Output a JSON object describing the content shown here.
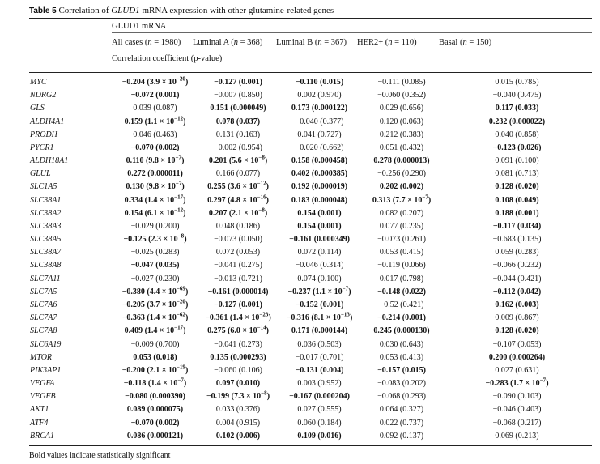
{
  "caption": {
    "label": "Table 5",
    "text_before": "Correlation of",
    "gene": "GLUD1",
    "text_after": "mRNA expression with other glutamine-related genes"
  },
  "header": {
    "group": "GLUD1 mRNA",
    "columns": [
      {
        "label": "All cases (",
        "n": "n",
        "eq": " = 1980)"
      },
      {
        "label": "Luminal A (",
        "n": "n",
        "eq": " = 368)"
      },
      {
        "label": "Luminal B (",
        "n": "n",
        "eq": " = 367)"
      },
      {
        "label": "HER2+ (",
        "n": "n",
        "eq": " = 110)"
      },
      {
        "label": "Basal (",
        "n": "n",
        "eq": " = 150)"
      }
    ],
    "subheader": "Correlation coefficient (p-value)"
  },
  "rows": [
    {
      "gene": "MYC",
      "cells": [
        {
          "t": "−0.204 (3.9 × 10^−20)",
          "b": true
        },
        {
          "t": "−0.127 (0.001)",
          "b": true
        },
        {
          "t": "−0.110 (0.015)",
          "b": true
        },
        {
          "t": "−0.111 (0.085)",
          "b": false
        },
        {
          "t": "0.015 (0.785)",
          "b": false
        }
      ]
    },
    {
      "gene": "NDRG2",
      "cells": [
        {
          "t": "−0.072 (0.001)",
          "b": true
        },
        {
          "t": "−0.007 (0.850)",
          "b": false
        },
        {
          "t": "0.002 (0.970)",
          "b": false
        },
        {
          "t": "−0.060 (0.352)",
          "b": false
        },
        {
          "t": "−0.040 (0.475)",
          "b": false
        }
      ]
    },
    {
      "gene": "GLS",
      "cells": [
        {
          "t": "0.039 (0.087)",
          "b": false
        },
        {
          "t": "0.151 (0.000049)",
          "b": true
        },
        {
          "t": "0.173 (0.000122)",
          "b": true
        },
        {
          "t": "0.029 (0.656)",
          "b": false
        },
        {
          "t": "0.117 (0.033)",
          "b": true
        }
      ]
    },
    {
      "gene": "ALDH4A1",
      "cells": [
        {
          "t": "0.159 (1.1 × 10^−12)",
          "b": true
        },
        {
          "t": "0.078 (0.037)",
          "b": true
        },
        {
          "t": "−0.040 (0.377)",
          "b": false
        },
        {
          "t": "0.120 (0.063)",
          "b": false
        },
        {
          "t": "0.232 (0.000022)",
          "b": true
        }
      ]
    },
    {
      "gene": "PRODH",
      "cells": [
        {
          "t": "0.046 (0.463)",
          "b": false
        },
        {
          "t": "0.131 (0.163)",
          "b": false
        },
        {
          "t": "0.041 (0.727)",
          "b": false
        },
        {
          "t": "0.212 (0.383)",
          "b": false
        },
        {
          "t": "0.040 (0.858)",
          "b": false
        }
      ]
    },
    {
      "gene": "PYCR1",
      "cells": [
        {
          "t": "−0.070 (0.002)",
          "b": true
        },
        {
          "t": "−0.002 (0.954)",
          "b": false
        },
        {
          "t": "−0.020 (0.662)",
          "b": false
        },
        {
          "t": "0.051 (0.432)",
          "b": false
        },
        {
          "t": "−0.123 (0.026)",
          "b": true
        }
      ]
    },
    {
      "gene": "ALDH18A1",
      "cells": [
        {
          "t": "0.110 (9.8 × 10^−7)",
          "b": true
        },
        {
          "t": "0.201 (5.6 × 10^−8)",
          "b": true
        },
        {
          "t": "0.158 (0.000458)",
          "b": true
        },
        {
          "t": "0.278 (0.000013)",
          "b": true
        },
        {
          "t": "0.091 (0.100)",
          "b": false
        }
      ]
    },
    {
      "gene": "GLUL",
      "cells": [
        {
          "t": "0.272 (0.000011)",
          "b": true
        },
        {
          "t": "0.166 (0.077)",
          "b": false
        },
        {
          "t": "0.402 (0.000385)",
          "b": true
        },
        {
          "t": "−0.256 (0.290)",
          "b": false
        },
        {
          "t": "0.081 (0.713)",
          "b": false
        }
      ]
    },
    {
      "gene": "SLC1A5",
      "cells": [
        {
          "t": "0.130 (9.8 × 10^−7)",
          "b": true
        },
        {
          "t": "0.255 (3.6 × 10^−12)",
          "b": true
        },
        {
          "t": "0.192 (0.000019)",
          "b": true
        },
        {
          "t": "0.202 (0.002)",
          "b": true
        },
        {
          "t": "0.128 (0.020)",
          "b": true
        }
      ]
    },
    {
      "gene": "SLC38A1",
      "cells": [
        {
          "t": "0.334 (1.4 × 10^−17)",
          "b": true
        },
        {
          "t": "0.297 (4.8 × 10^−16)",
          "b": true
        },
        {
          "t": "0.183 (0.000048)",
          "b": true
        },
        {
          "t": "0.313 (7.7 × 10^−7)",
          "b": true
        },
        {
          "t": "0.108 (0.049)",
          "b": true
        }
      ]
    },
    {
      "gene": "SLC38A2",
      "cells": [
        {
          "t": "0.154 (6.1 × 10^−12)",
          "b": true
        },
        {
          "t": "0.207 (2.1 × 10^−8)",
          "b": true
        },
        {
          "t": "0.154 (0.001)",
          "b": true
        },
        {
          "t": "0.082 (0.207)",
          "b": false
        },
        {
          "t": "0.188 (0.001)",
          "b": true
        }
      ]
    },
    {
      "gene": "SLC38A3",
      "cells": [
        {
          "t": "−0.029 (0.200)",
          "b": false
        },
        {
          "t": "0.048 (0.186)",
          "b": false
        },
        {
          "t": "0.154 (0.001)",
          "b": true
        },
        {
          "t": "0.077 (0.235)",
          "b": false
        },
        {
          "t": "−0.117 (0.034)",
          "b": true
        }
      ]
    },
    {
      "gene": "SLC38A5",
      "cells": [
        {
          "t": "−0.125 (2.3 × 10^−8)",
          "b": true
        },
        {
          "t": "−0.073 (0.050)",
          "b": false
        },
        {
          "t": "−0.161 (0.000349)",
          "b": true
        },
        {
          "t": "−0.073 (0.261)",
          "b": false
        },
        {
          "t": "−0.683 (0.135)",
          "b": false
        }
      ]
    },
    {
      "gene": "SLC38A7",
      "cells": [
        {
          "t": "−0.025 (0.283)",
          "b": false
        },
        {
          "t": "0.072 (0.053)",
          "b": false
        },
        {
          "t": "0.072 (0.114)",
          "b": false
        },
        {
          "t": "0.053 (0.415)",
          "b": false
        },
        {
          "t": "0.059 (0.283)",
          "b": false
        }
      ]
    },
    {
      "gene": "SLC38A8",
      "cells": [
        {
          "t": "−0.047 (0.035)",
          "b": true
        },
        {
          "t": "−0.041 (0.275)",
          "b": false
        },
        {
          "t": "−0.046 (0.314)",
          "b": false
        },
        {
          "t": "−0.119 (0.066)",
          "b": false
        },
        {
          "t": "−0.066 (0.232)",
          "b": false
        }
      ]
    },
    {
      "gene": "SLC7A11",
      "cells": [
        {
          "t": "−0.027 (0.230)",
          "b": false
        },
        {
          "t": "−0.013 (0.721)",
          "b": false
        },
        {
          "t": "0.074 (0.100)",
          "b": false
        },
        {
          "t": "0.017 (0.798)",
          "b": false
        },
        {
          "t": "−0.044 (0.421)",
          "b": false
        }
      ]
    },
    {
      "gene": "SLC7A5",
      "cells": [
        {
          "t": "−0.380 (4.4 × 10^−69)",
          "b": true
        },
        {
          "t": "−0.161 (0.000014)",
          "b": true
        },
        {
          "t": "−0.237 (1.1 × 10^−7)",
          "b": true
        },
        {
          "t": "−0.148 (0.022)",
          "b": true
        },
        {
          "t": "−0.112 (0.042)",
          "b": true
        }
      ]
    },
    {
      "gene": "SLC7A6",
      "cells": [
        {
          "t": "−0.205 (3.7 × 10^−20)",
          "b": true
        },
        {
          "t": "−0.127 (0.001)",
          "b": true
        },
        {
          "t": "−0.152 (0.001)",
          "b": true
        },
        {
          "t": "−0.52 (0.421)",
          "b": false
        },
        {
          "t": "0.162 (0.003)",
          "b": true
        }
      ]
    },
    {
      "gene": "SLC7A7",
      "cells": [
        {
          "t": "−0.363 (1.4 × 10^−62)",
          "b": true
        },
        {
          "t": "−0.361 (1.4 × 10^−23)",
          "b": true
        },
        {
          "t": "−0.316 (8.1 × 10^−13)",
          "b": true
        },
        {
          "t": "−0.214 (0.001)",
          "b": true
        },
        {
          "t": "0.009 (0.867)",
          "b": false
        }
      ]
    },
    {
      "gene": "SLC7A8",
      "cells": [
        {
          "t": "0.409 (1.4 × 10^−17)",
          "b": true
        },
        {
          "t": "0.275 (6.0 × 10^−14)",
          "b": true
        },
        {
          "t": "0.171 (0.000144)",
          "b": true
        },
        {
          "t": "0.245 (0.000130)",
          "b": true
        },
        {
          "t": "0.128 (0.020)",
          "b": true
        }
      ]
    },
    {
      "gene": "SLC6A19",
      "cells": [
        {
          "t": "−0.009 (0.700)",
          "b": false
        },
        {
          "t": "−0.041 (0.273)",
          "b": false
        },
        {
          "t": "0.036 (0.503)",
          "b": false
        },
        {
          "t": "0.030 (0.643)",
          "b": false
        },
        {
          "t": "−0.107 (0.053)",
          "b": false
        }
      ]
    },
    {
      "gene": "MTOR",
      "cells": [
        {
          "t": "0.053 (0.018)",
          "b": true
        },
        {
          "t": "0.135 (0.000293)",
          "b": true
        },
        {
          "t": "−0.017 (0.701)",
          "b": false
        },
        {
          "t": "0.053 (0.413)",
          "b": false
        },
        {
          "t": "0.200 (0.000264)",
          "b": true
        }
      ]
    },
    {
      "gene": "PIK3AP1",
      "cells": [
        {
          "t": "−0.200 (2.1 × 10^−19)",
          "b": true
        },
        {
          "t": "−0.060 (0.106)",
          "b": false
        },
        {
          "t": "−0.131 (0.004)",
          "b": true
        },
        {
          "t": "−0.157 (0.015)",
          "b": true
        },
        {
          "t": "0.027 (0.631)",
          "b": false
        }
      ]
    },
    {
      "gene": "VEGFA",
      "cells": [
        {
          "t": "−0.118 (1.4 × 10^−7)",
          "b": true
        },
        {
          "t": "0.097 (0.010)",
          "b": true
        },
        {
          "t": "0.003 (0.952)",
          "b": false
        },
        {
          "t": "−0.083 (0.202)",
          "b": false
        },
        {
          "t": "−0.283 (1.7 × 10^−7)",
          "b": true
        }
      ]
    },
    {
      "gene": "VEGFB",
      "cells": [
        {
          "t": "−0.080 (0.000390)",
          "b": true
        },
        {
          "t": "−0.199 (7.3 × 10^−8)",
          "b": true
        },
        {
          "t": "−0.167 (0.000204)",
          "b": true
        },
        {
          "t": "−0.068 (0.293)",
          "b": false
        },
        {
          "t": "−0.090 (0.103)",
          "b": false
        }
      ]
    },
    {
      "gene": "AKT1",
      "cells": [
        {
          "t": "0.089 (0.000075)",
          "b": true
        },
        {
          "t": "0.033 (0.376)",
          "b": false
        },
        {
          "t": "0.027 (0.555)",
          "b": false
        },
        {
          "t": "0.064 (0.327)",
          "b": false
        },
        {
          "t": "−0.046 (0.403)",
          "b": false
        }
      ]
    },
    {
      "gene": "ATF4",
      "cells": [
        {
          "t": "−0.070 (0.002)",
          "b": true
        },
        {
          "t": "0.004 (0.915)",
          "b": false
        },
        {
          "t": "0.060 (0.184)",
          "b": false
        },
        {
          "t": "0.022 (0.737)",
          "b": false
        },
        {
          "t": "−0.068 (0.217)",
          "b": false
        }
      ]
    },
    {
      "gene": "BRCA1",
      "cells": [
        {
          "t": "0.086 (0.000121)",
          "b": true
        },
        {
          "t": "0.102 (0.006)",
          "b": true
        },
        {
          "t": "0.109 (0.016)",
          "b": true
        },
        {
          "t": "0.092 (0.137)",
          "b": false
        },
        {
          "t": "0.069 (0.213)",
          "b": false
        }
      ]
    }
  ],
  "footnote": "Bold values indicate statistically significant"
}
